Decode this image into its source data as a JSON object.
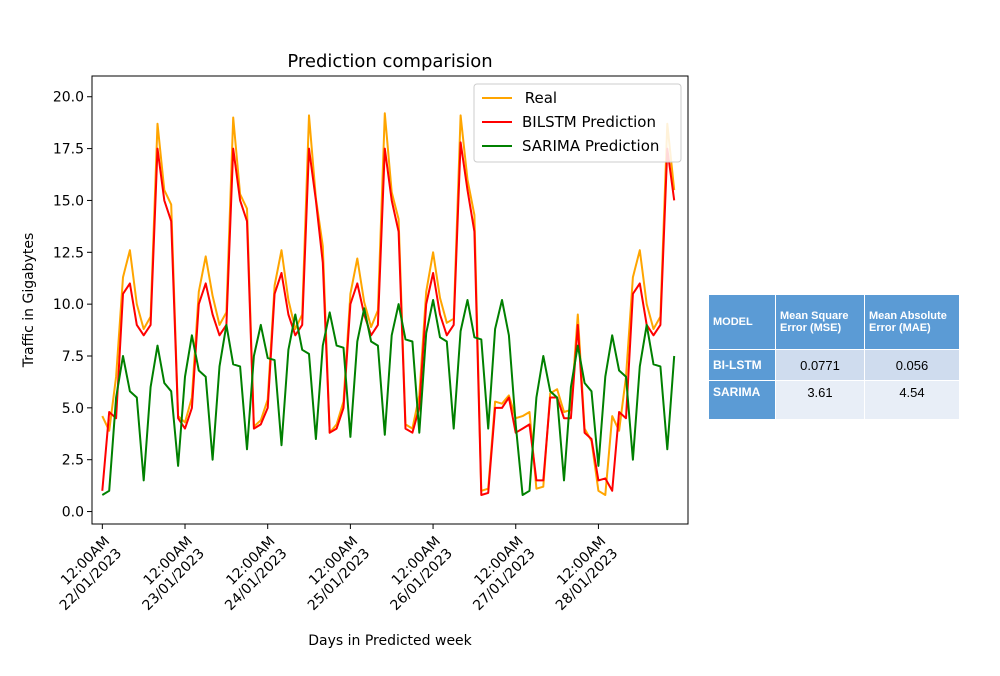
{
  "chart_data": {
    "type": "line",
    "title": "Prediction comparision",
    "xlabel": "Days in Predicted week",
    "ylabel": "Traffic in Gigabytes",
    "ylim": [
      -0.6,
      21.0
    ],
    "xlim": [
      "2023-01-21T21:00",
      "2023-01-29T02:00"
    ],
    "yticks": [
      0.0,
      2.5,
      5.0,
      7.5,
      10.0,
      12.5,
      15.0,
      17.5,
      20.0
    ],
    "ytick_labels": [
      "0.0",
      "2.5",
      "5.0",
      "7.5",
      "10.0",
      "12.5",
      "15.0",
      "17.5",
      "20.0"
    ],
    "xticks": [
      "2023-01-22T00:00",
      "2023-01-23T00:00",
      "2023-01-24T00:00",
      "2023-01-25T00:00",
      "2023-01-26T00:00",
      "2023-01-27T00:00",
      "2023-01-28T00:00"
    ],
    "xtick_labels": [
      [
        "12:00AM",
        "22/01/2023"
      ],
      [
        "12:00AM",
        "23/01/2023"
      ],
      [
        "12:00AM",
        "24/01/2023"
      ],
      [
        "12:00AM",
        "25/01/2023"
      ],
      [
        "12:00AM",
        "26/01/2023"
      ],
      [
        "12:00AM",
        "27/01/2023"
      ],
      [
        "12:00AM",
        "28/01/2023"
      ]
    ],
    "grid": false,
    "legend_position": "top-right",
    "series": [
      {
        "name": " Real",
        "color": "#ffa500",
        "x": [
          "2023-01-22T00:00",
          "2023-01-22T02:00",
          "2023-01-22T04:00",
          "2023-01-22T06:00",
          "2023-01-22T08:00",
          "2023-01-22T10:00",
          "2023-01-22T12:00",
          "2023-01-22T14:00",
          "2023-01-22T16:00",
          "2023-01-22T18:00",
          "2023-01-22T20:00",
          "2023-01-22T22:00",
          "2023-01-23T00:00",
          "2023-01-23T02:00",
          "2023-01-23T04:00",
          "2023-01-23T06:00",
          "2023-01-23T08:00",
          "2023-01-23T10:00",
          "2023-01-23T12:00",
          "2023-01-23T14:00",
          "2023-01-23T16:00",
          "2023-01-23T18:00",
          "2023-01-23T20:00",
          "2023-01-23T22:00",
          "2023-01-24T00:00",
          "2023-01-24T02:00",
          "2023-01-24T04:00",
          "2023-01-24T06:00",
          "2023-01-24T08:00",
          "2023-01-24T10:00",
          "2023-01-24T12:00",
          "2023-01-24T14:00",
          "2023-01-24T16:00",
          "2023-01-24T18:00",
          "2023-01-24T20:00",
          "2023-01-24T22:00",
          "2023-01-25T00:00",
          "2023-01-25T02:00",
          "2023-01-25T04:00",
          "2023-01-25T06:00",
          "2023-01-25T08:00",
          "2023-01-25T10:00",
          "2023-01-25T12:00",
          "2023-01-25T14:00",
          "2023-01-25T16:00",
          "2023-01-25T18:00",
          "2023-01-25T20:00",
          "2023-01-25T22:00",
          "2023-01-26T00:00",
          "2023-01-26T02:00",
          "2023-01-26T04:00",
          "2023-01-26T06:00",
          "2023-01-26T08:00",
          "2023-01-26T10:00",
          "2023-01-26T12:00",
          "2023-01-26T14:00",
          "2023-01-26T16:00",
          "2023-01-26T18:00",
          "2023-01-26T20:00",
          "2023-01-26T22:00",
          "2023-01-27T00:00",
          "2023-01-27T02:00",
          "2023-01-27T04:00",
          "2023-01-27T06:00",
          "2023-01-27T08:00",
          "2023-01-27T10:00",
          "2023-01-27T12:00",
          "2023-01-27T14:00",
          "2023-01-27T16:00",
          "2023-01-27T18:00",
          "2023-01-27T20:00",
          "2023-01-27T22:00",
          "2023-01-28T00:00",
          "2023-01-28T02:00",
          "2023-01-28T04:00",
          "2023-01-28T06:00",
          "2023-01-28T08:00",
          "2023-01-28T10:00",
          "2023-01-28T12:00",
          "2023-01-28T14:00",
          "2023-01-28T16:00",
          "2023-01-28T18:00",
          "2023-01-28T20:00",
          "2023-01-28T22:00"
        ],
        "values": [
          4.6,
          3.9,
          6.5,
          11.3,
          12.6,
          10.0,
          8.8,
          9.4,
          18.7,
          15.5,
          14.8,
          4.6,
          4.3,
          5.5,
          10.6,
          12.3,
          10.4,
          9.0,
          9.6,
          19.0,
          15.3,
          14.6,
          4.1,
          4.4,
          5.4,
          10.9,
          12.6,
          10.2,
          8.8,
          9.5,
          19.1,
          15.1,
          12.8,
          3.8,
          4.2,
          5.3,
          10.5,
          12.2,
          10.1,
          8.9,
          9.7,
          19.2,
          15.4,
          14.1,
          4.2,
          4.0,
          5.6,
          10.6,
          12.5,
          10.3,
          9.1,
          9.3,
          19.1,
          16.0,
          14.3,
          1.0,
          1.1,
          5.3,
          5.2,
          5.6,
          4.5,
          4.6,
          4.8,
          1.1,
          1.2,
          5.7,
          5.9,
          4.8,
          4.9,
          9.5,
          4.0,
          3.4,
          1.0,
          0.8,
          4.6,
          3.9,
          6.5,
          11.3,
          12.6,
          10.0,
          8.8,
          9.4,
          18.7,
          15.5
        ]
      },
      {
        "name": "BILSTM Prediction",
        "color": "#ff0000",
        "x": [
          "2023-01-22T00:00",
          "2023-01-22T02:00",
          "2023-01-22T04:00",
          "2023-01-22T06:00",
          "2023-01-22T08:00",
          "2023-01-22T10:00",
          "2023-01-22T12:00",
          "2023-01-22T14:00",
          "2023-01-22T16:00",
          "2023-01-22T18:00",
          "2023-01-22T20:00",
          "2023-01-22T22:00",
          "2023-01-23T00:00",
          "2023-01-23T02:00",
          "2023-01-23T04:00",
          "2023-01-23T06:00",
          "2023-01-23T08:00",
          "2023-01-23T10:00",
          "2023-01-23T12:00",
          "2023-01-23T14:00",
          "2023-01-23T16:00",
          "2023-01-23T18:00",
          "2023-01-23T20:00",
          "2023-01-23T22:00",
          "2023-01-24T00:00",
          "2023-01-24T02:00",
          "2023-01-24T04:00",
          "2023-01-24T06:00",
          "2023-01-24T08:00",
          "2023-01-24T10:00",
          "2023-01-24T12:00",
          "2023-01-24T14:00",
          "2023-01-24T16:00",
          "2023-01-24T18:00",
          "2023-01-24T20:00",
          "2023-01-24T22:00",
          "2023-01-25T00:00",
          "2023-01-25T02:00",
          "2023-01-25T04:00",
          "2023-01-25T06:00",
          "2023-01-25T08:00",
          "2023-01-25T10:00",
          "2023-01-25T12:00",
          "2023-01-25T14:00",
          "2023-01-25T16:00",
          "2023-01-25T18:00",
          "2023-01-25T20:00",
          "2023-01-25T22:00",
          "2023-01-26T00:00",
          "2023-01-26T02:00",
          "2023-01-26T04:00",
          "2023-01-26T06:00",
          "2023-01-26T08:00",
          "2023-01-26T10:00",
          "2023-01-26T12:00",
          "2023-01-26T14:00",
          "2023-01-26T16:00",
          "2023-01-26T18:00",
          "2023-01-26T20:00",
          "2023-01-26T22:00",
          "2023-01-27T00:00",
          "2023-01-27T02:00",
          "2023-01-27T04:00",
          "2023-01-27T06:00",
          "2023-01-27T08:00",
          "2023-01-27T10:00",
          "2023-01-27T12:00",
          "2023-01-27T14:00",
          "2023-01-27T16:00",
          "2023-01-27T18:00",
          "2023-01-27T20:00",
          "2023-01-27T22:00",
          "2023-01-28T00:00",
          "2023-01-28T02:00",
          "2023-01-28T04:00",
          "2023-01-28T06:00",
          "2023-01-28T08:00",
          "2023-01-28T10:00",
          "2023-01-28T12:00",
          "2023-01-28T14:00",
          "2023-01-28T16:00",
          "2023-01-28T18:00",
          "2023-01-28T20:00",
          "2023-01-28T22:00"
        ],
        "values": [
          1.0,
          4.8,
          4.5,
          10.5,
          11.0,
          9.0,
          8.5,
          9.0,
          17.5,
          15.0,
          14.0,
          4.5,
          4.0,
          5.0,
          10.0,
          11.0,
          9.5,
          8.5,
          9.0,
          17.5,
          15.0,
          14.0,
          4.0,
          4.2,
          5.0,
          10.5,
          11.5,
          9.5,
          8.5,
          9.0,
          17.5,
          15.0,
          12.0,
          3.8,
          4.0,
          5.0,
          10.0,
          11.0,
          9.5,
          8.5,
          9.0,
          17.5,
          15.0,
          13.5,
          4.0,
          3.8,
          5.0,
          10.0,
          11.5,
          9.5,
          8.5,
          9.0,
          17.8,
          15.5,
          13.5,
          0.8,
          0.9,
          5.0,
          5.0,
          5.5,
          3.8,
          4.0,
          4.2,
          1.5,
          1.5,
          5.5,
          5.5,
          4.5,
          4.5,
          9.0,
          3.8,
          3.5,
          1.5,
          1.6,
          1.0,
          4.8,
          4.5,
          10.5,
          11.0,
          9.0,
          8.5,
          9.0,
          17.5,
          15.0
        ]
      },
      {
        "name": "SARIMA Prediction",
        "color": "#008000",
        "x": [
          "2023-01-22T00:00",
          "2023-01-22T02:00",
          "2023-01-22T04:00",
          "2023-01-22T06:00",
          "2023-01-22T08:00",
          "2023-01-22T10:00",
          "2023-01-22T12:00",
          "2023-01-22T14:00",
          "2023-01-22T16:00",
          "2023-01-22T18:00",
          "2023-01-22T20:00",
          "2023-01-22T22:00",
          "2023-01-23T00:00",
          "2023-01-23T02:00",
          "2023-01-23T04:00",
          "2023-01-23T06:00",
          "2023-01-23T08:00",
          "2023-01-23T10:00",
          "2023-01-23T12:00",
          "2023-01-23T14:00",
          "2023-01-23T16:00",
          "2023-01-23T18:00",
          "2023-01-23T20:00",
          "2023-01-23T22:00",
          "2023-01-24T00:00",
          "2023-01-24T02:00",
          "2023-01-24T04:00",
          "2023-01-24T06:00",
          "2023-01-24T08:00",
          "2023-01-24T10:00",
          "2023-01-24T12:00",
          "2023-01-24T14:00",
          "2023-01-24T16:00",
          "2023-01-24T18:00",
          "2023-01-24T20:00",
          "2023-01-24T22:00",
          "2023-01-25T00:00",
          "2023-01-25T02:00",
          "2023-01-25T04:00",
          "2023-01-25T06:00",
          "2023-01-25T08:00",
          "2023-01-25T10:00",
          "2023-01-25T12:00",
          "2023-01-25T14:00",
          "2023-01-25T16:00",
          "2023-01-25T18:00",
          "2023-01-25T20:00",
          "2023-01-25T22:00",
          "2023-01-26T00:00",
          "2023-01-26T02:00",
          "2023-01-26T04:00",
          "2023-01-26T06:00",
          "2023-01-26T08:00",
          "2023-01-26T10:00",
          "2023-01-26T12:00",
          "2023-01-26T14:00",
          "2023-01-26T16:00",
          "2023-01-26T18:00",
          "2023-01-26T20:00",
          "2023-01-26T22:00",
          "2023-01-27T00:00",
          "2023-01-27T02:00",
          "2023-01-27T04:00",
          "2023-01-27T06:00",
          "2023-01-27T08:00",
          "2023-01-27T10:00",
          "2023-01-27T12:00",
          "2023-01-27T14:00",
          "2023-01-27T16:00",
          "2023-01-27T18:00",
          "2023-01-27T20:00",
          "2023-01-27T22:00",
          "2023-01-28T00:00",
          "2023-01-28T02:00",
          "2023-01-28T04:00",
          "2023-01-28T06:00",
          "2023-01-28T08:00",
          "2023-01-28T10:00",
          "2023-01-28T12:00",
          "2023-01-28T14:00",
          "2023-01-28T16:00",
          "2023-01-28T18:00",
          "2023-01-28T20:00",
          "2023-01-28T22:00"
        ],
        "values": [
          0.8,
          1.0,
          5.5,
          7.5,
          5.8,
          5.5,
          1.5,
          6.0,
          8.0,
          6.2,
          5.8,
          2.2,
          6.5,
          8.5,
          6.8,
          6.5,
          2.5,
          7.0,
          9.0,
          7.1,
          7.0,
          3.0,
          7.5,
          9.0,
          7.4,
          7.3,
          3.2,
          7.8,
          9.5,
          7.8,
          7.6,
          3.5,
          8.0,
          9.6,
          8.0,
          7.9,
          3.6,
          8.2,
          9.8,
          8.2,
          8.0,
          3.7,
          8.5,
          10.0,
          8.3,
          8.2,
          3.8,
          8.6,
          10.2,
          8.4,
          8.2,
          4.0,
          8.7,
          10.2,
          8.4,
          8.3,
          4.0,
          8.8,
          10.2,
          8.5,
          4.2,
          0.8,
          1.0,
          5.5,
          7.5,
          5.8,
          5.5,
          1.5,
          6.0,
          8.0,
          6.2,
          5.8,
          2.2,
          6.5,
          8.5,
          6.8,
          6.5,
          2.5,
          7.0,
          9.0,
          7.1,
          7.0,
          3.0,
          7.5
        ]
      }
    ],
    "metrics_table": {
      "headers": [
        "MODEL",
        "Mean Square Error (MSE)",
        "Mean Absolute Error (MAE)"
      ],
      "rows": [
        [
          "BI-LSTM",
          "0.0771",
          "0.056"
        ],
        [
          "SARIMA",
          "3.61",
          "4.54"
        ]
      ]
    }
  }
}
